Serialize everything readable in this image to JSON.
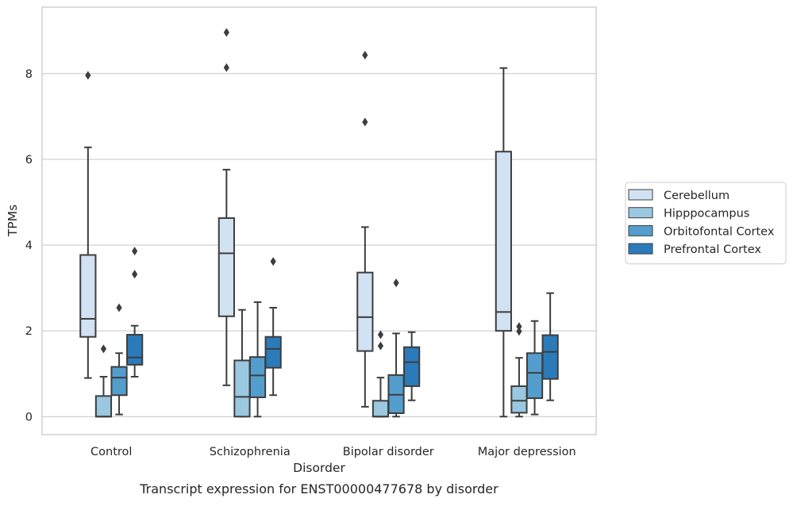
{
  "chart_data": {
    "type": "box",
    "title": "",
    "caption": "Transcript expression for ENST00000477678 by disorder",
    "xlabel": "Disorder",
    "ylabel": "TPMs",
    "ylim": [
      -0.42,
      9.55
    ],
    "yticks": [
      0,
      2,
      4,
      6,
      8
    ],
    "grid": "horizontal",
    "legend_position": "right",
    "categories": [
      "Control",
      "Schizophrenia",
      "Bipolar disorder",
      "Major depression"
    ],
    "series": [
      {
        "name": "Cerebellum",
        "color": "#d1e2f2",
        "boxes": [
          {
            "whislo": 0.9,
            "q1": 1.86,
            "med": 2.28,
            "q3": 3.77,
            "whishi": 6.28,
            "fliers": [
              7.96
            ]
          },
          {
            "whislo": 0.73,
            "q1": 2.34,
            "med": 3.81,
            "q3": 4.63,
            "whishi": 5.76,
            "fliers": [
              8.14,
              8.96
            ]
          },
          {
            "whislo": 0.23,
            "q1": 1.53,
            "med": 2.32,
            "q3": 3.36,
            "whishi": 4.42,
            "fliers": [
              6.87,
              8.43
            ]
          },
          {
            "whislo": 0.0,
            "q1": 2.0,
            "med": 2.44,
            "q3": 6.18,
            "whishi": 8.13,
            "fliers": []
          }
        ]
      },
      {
        "name": "Hipppocampus",
        "color": "#9ac8e0",
        "boxes": [
          {
            "whislo": 0.0,
            "q1": 0.0,
            "med": 0.0,
            "q3": 0.48,
            "whishi": 0.93,
            "fliers": [
              1.58
            ]
          },
          {
            "whislo": 0.0,
            "q1": 0.0,
            "med": 0.46,
            "q3": 1.31,
            "whishi": 2.49,
            "fliers": []
          },
          {
            "whislo": 0.0,
            "q1": 0.0,
            "med": 0.0,
            "q3": 0.37,
            "whishi": 0.91,
            "fliers": [
              1.65,
              1.91
            ]
          },
          {
            "whislo": 0.0,
            "q1": 0.09,
            "med": 0.37,
            "q3": 0.71,
            "whishi": 1.37,
            "fliers": [
              1.99,
              2.1
            ]
          }
        ]
      },
      {
        "name": "Orbitofontal Cortex",
        "color": "#539ecd",
        "boxes": [
          {
            "whislo": 0.05,
            "q1": 0.5,
            "med": 0.91,
            "q3": 1.16,
            "whishi": 1.48,
            "fliers": [
              2.54
            ]
          },
          {
            "whislo": 0.0,
            "q1": 0.45,
            "med": 0.96,
            "q3": 1.39,
            "whishi": 2.67,
            "fliers": []
          },
          {
            "whislo": 0.0,
            "q1": 0.08,
            "med": 0.51,
            "q3": 0.97,
            "whishi": 1.94,
            "fliers": [
              3.12
            ]
          },
          {
            "whislo": 0.05,
            "q1": 0.43,
            "med": 1.02,
            "q3": 1.48,
            "whishi": 2.23,
            "fliers": []
          }
        ]
      },
      {
        "name": "Prefrontal Cortex",
        "color": "#2b7bba",
        "boxes": [
          {
            "whislo": 0.93,
            "q1": 1.21,
            "med": 1.38,
            "q3": 1.91,
            "whishi": 2.12,
            "fliers": [
              3.32,
              3.86
            ]
          },
          {
            "whislo": 0.5,
            "q1": 1.14,
            "med": 1.58,
            "q3": 1.86,
            "whishi": 2.54,
            "fliers": [
              3.62
            ]
          },
          {
            "whislo": 0.38,
            "q1": 0.71,
            "med": 1.27,
            "q3": 1.62,
            "whishi": 1.97,
            "fliers": []
          },
          {
            "whislo": 0.38,
            "q1": 0.88,
            "med": 1.51,
            "q3": 1.9,
            "whishi": 2.88,
            "fliers": []
          }
        ]
      }
    ]
  }
}
